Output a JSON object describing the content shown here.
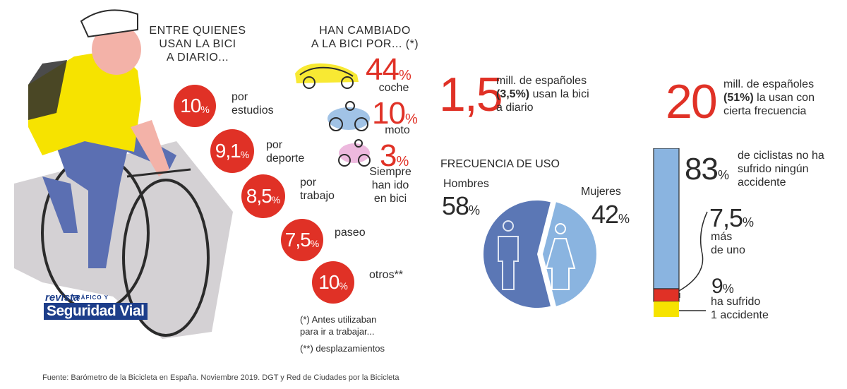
{
  "left": {
    "header": [
      "ENTRE QUIENES",
      "USAN LA BICI",
      "A DIARIO..."
    ],
    "reasons": [
      {
        "value": "10",
        "unit": "%",
        "label": [
          "por",
          "estudios"
        ]
      },
      {
        "value": "9,1",
        "unit": "%",
        "label": [
          "por",
          "deporte"
        ]
      },
      {
        "value": "8,5",
        "unit": "%",
        "label": [
          "por",
          "trabajo"
        ]
      },
      {
        "value": "7,5",
        "unit": "%",
        "label": [
          "paseo"
        ]
      },
      {
        "value": "10",
        "unit": "%",
        "label": [
          "otros**"
        ]
      }
    ],
    "notes": [
      "(*) Antes utilizaban",
      "para ir a trabajar...",
      "(**) desplazamientos"
    ]
  },
  "middle": {
    "header": [
      "HAN CAMBIADO",
      "A LA BICI POR... (*)"
    ],
    "items": [
      {
        "value": "44",
        "unit": "%",
        "label": [
          "coche"
        ],
        "icon": "car-icon"
      },
      {
        "value": "10",
        "unit": "%",
        "label": [
          "moto"
        ],
        "icon": "motorbike-icon"
      },
      {
        "value": "3",
        "unit": "%",
        "label": [
          "Siempre",
          "han ido",
          "en bici"
        ],
        "icon": "cyclist-icon"
      }
    ]
  },
  "stat1": {
    "value": "1,5",
    "text_a": "mill. de españoles",
    "text_b_bold": "(3,5%)",
    "text_b": " usan la bici",
    "text_c": "a diario"
  },
  "stat2": {
    "value": "20",
    "text_a": "mill. de españoles",
    "text_b_bold": "(51%)",
    "text_b": " la usan con",
    "text_c": "cierta frecuencia"
  },
  "frequency": {
    "title": "FRECUENCIA DE USO",
    "men": {
      "label": "Hombres",
      "value": "58",
      "unit": "%",
      "fraction": 0.58
    },
    "women": {
      "label": "Mujeres",
      "value": "42",
      "unit": "%",
      "fraction": 0.42
    }
  },
  "accidents": {
    "items": [
      {
        "value": "83",
        "unit": "%",
        "label": [
          "de ciclistas no ha",
          "sufrido ningún",
          "accidente"
        ],
        "color": "#8ab4e0",
        "fraction": 0.83
      },
      {
        "value": "7,5",
        "unit": "%",
        "label": [
          "más",
          "de uno"
        ],
        "color": "#e03126",
        "fraction": 0.075
      },
      {
        "value": "9",
        "unit": "%",
        "label": [
          "ha sufrido",
          "1 accidente"
        ],
        "color": "#f6e300",
        "fraction": 0.09
      }
    ]
  },
  "logo": {
    "line1": "revista",
    "line1_small": "TRÁFICO Y",
    "line2": "Seguridad Vial"
  },
  "source": "Fuente: Barómetro de la Bicicleta en España. Noviembre 2019. DGT y Red de Ciudades por la Bicicleta",
  "colors": {
    "accent": "#e03126",
    "men": "#5b77b5",
    "women": "#8ab4e0",
    "yellow": "#f6e300"
  }
}
